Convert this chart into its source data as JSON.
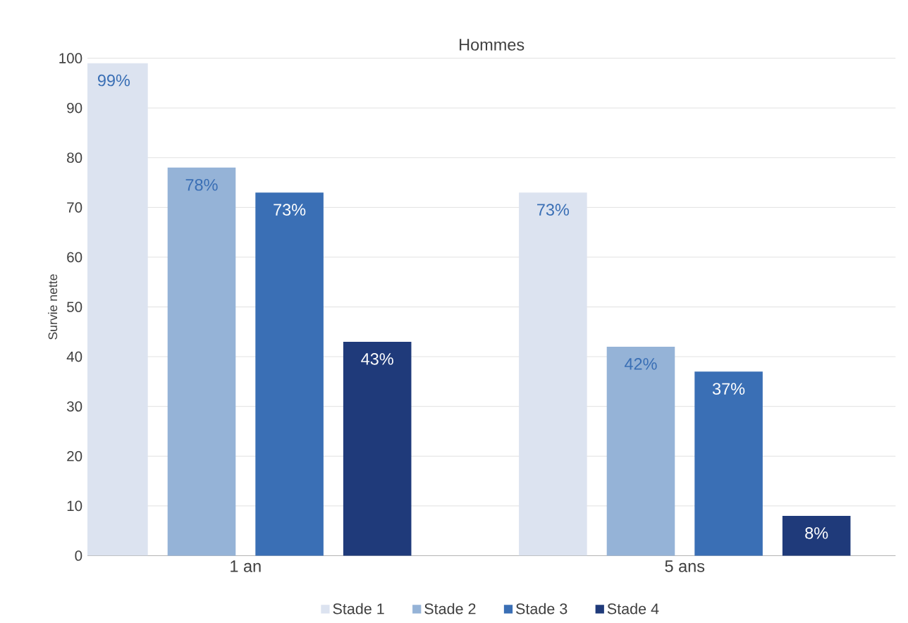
{
  "chart_data": {
    "type": "bar",
    "title": "Hommes",
    "ylabel": "Survie nette",
    "categories": [
      "1 an",
      "5 ans"
    ],
    "series": [
      {
        "name": "Stade 1",
        "color": "#dce3f0",
        "values": [
          99,
          73
        ],
        "value_labels": [
          "99%",
          "73%"
        ]
      },
      {
        "name": "Stade 2",
        "color": "#95b3d7",
        "values": [
          78,
          42
        ],
        "value_labels": [
          "78%",
          "42%"
        ]
      },
      {
        "name": "Stade 3",
        "color": "#3a6fb5",
        "values": [
          73,
          37
        ],
        "value_labels": [
          "73%",
          "37%"
        ]
      },
      {
        "name": "Stade 4",
        "color": "#1f3a7a",
        "values": [
          43,
          8
        ],
        "value_labels": [
          "43%",
          "8%"
        ]
      }
    ],
    "ylim": [
      0,
      100
    ],
    "yticks": [
      0,
      10,
      20,
      30,
      40,
      50,
      60,
      70,
      80,
      90,
      100
    ],
    "grid": "y",
    "legend": "bottom"
  }
}
